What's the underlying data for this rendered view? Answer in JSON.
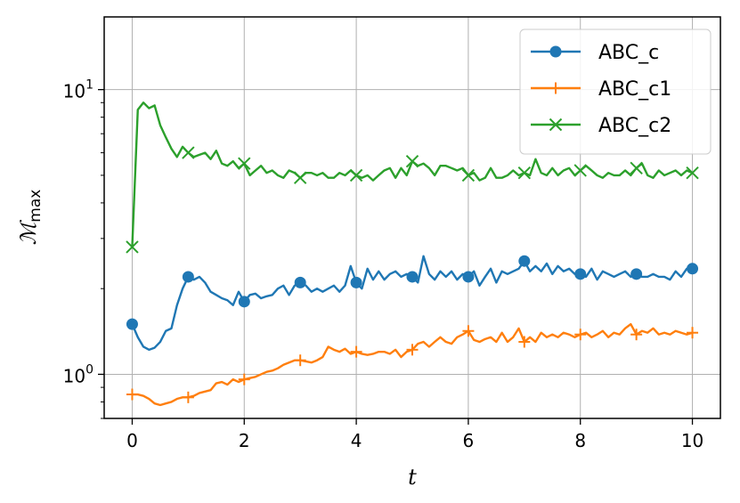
{
  "chart_data": {
    "type": "line",
    "xlabel": "t",
    "ylabel": "ℳ",
    "ylabel_sub": "max",
    "y_scale": "log",
    "xlim": [
      -0.5,
      10.5
    ],
    "ylim": [
      0.7,
      18
    ],
    "x_ticks": [
      0,
      2,
      4,
      6,
      8,
      10
    ],
    "x_tick_labels": [
      "0",
      "2",
      "4",
      "6",
      "8",
      "10"
    ],
    "y_ticks": [
      1,
      10
    ],
    "y_tick_labels": [
      {
        "base": "10",
        "exp": "0"
      },
      {
        "base": "10",
        "exp": "1"
      }
    ],
    "grid": true,
    "legend_position": "top-right",
    "series": [
      {
        "name": "ABC_c",
        "color": "#1f77b4",
        "marker": "circle",
        "x": [
          0,
          0.1,
          0.2,
          0.3,
          0.4,
          0.5,
          0.6,
          0.7,
          0.8,
          0.9,
          1.0,
          1.1,
          1.2,
          1.3,
          1.4,
          1.5,
          1.6,
          1.7,
          1.8,
          1.9,
          2.0,
          2.1,
          2.2,
          2.3,
          2.4,
          2.5,
          2.6,
          2.7,
          2.8,
          2.9,
          3.0,
          3.1,
          3.2,
          3.3,
          3.4,
          3.5,
          3.6,
          3.7,
          3.8,
          3.9,
          4.0,
          4.1,
          4.2,
          4.3,
          4.4,
          4.5,
          4.6,
          4.7,
          4.8,
          4.9,
          5.0,
          5.1,
          5.2,
          5.3,
          5.4,
          5.5,
          5.6,
          5.7,
          5.8,
          5.9,
          6.0,
          6.1,
          6.2,
          6.3,
          6.4,
          6.5,
          6.6,
          6.7,
          6.8,
          6.9,
          7.0,
          7.1,
          7.2,
          7.3,
          7.4,
          7.5,
          7.6,
          7.7,
          7.8,
          7.9,
          8.0,
          8.1,
          8.2,
          8.3,
          8.4,
          8.5,
          8.6,
          8.7,
          8.8,
          8.9,
          9.0,
          9.1,
          9.2,
          9.3,
          9.4,
          9.5,
          9.6,
          9.7,
          9.8,
          9.9,
          10.0
        ],
        "values": [
          1.5,
          1.35,
          1.25,
          1.22,
          1.24,
          1.3,
          1.42,
          1.45,
          1.75,
          2.0,
          2.2,
          2.15,
          2.2,
          2.1,
          1.95,
          1.9,
          1.85,
          1.82,
          1.75,
          1.95,
          1.8,
          1.9,
          1.92,
          1.85,
          1.88,
          1.9,
          2.0,
          2.05,
          1.9,
          2.05,
          2.1,
          2.05,
          1.95,
          2.0,
          1.95,
          2.0,
          2.05,
          1.95,
          2.05,
          2.4,
          2.1,
          2.0,
          2.35,
          2.15,
          2.3,
          2.15,
          2.25,
          2.3,
          2.2,
          2.25,
          2.2,
          2.1,
          2.6,
          2.25,
          2.15,
          2.3,
          2.2,
          2.3,
          2.15,
          2.25,
          2.2,
          2.3,
          2.05,
          2.2,
          2.35,
          2.1,
          2.3,
          2.25,
          2.3,
          2.35,
          2.5,
          2.3,
          2.4,
          2.3,
          2.45,
          2.25,
          2.4,
          2.3,
          2.35,
          2.25,
          2.25,
          2.2,
          2.35,
          2.15,
          2.3,
          2.25,
          2.2,
          2.25,
          2.3,
          2.2,
          2.25,
          2.2,
          2.2,
          2.25,
          2.2,
          2.2,
          2.15,
          2.3,
          2.2,
          2.35,
          2.35
        ],
        "marker_x": [
          0,
          1,
          2,
          3,
          4,
          5,
          6,
          7,
          8,
          9,
          10
        ]
      },
      {
        "name": "ABC_c1",
        "color": "#ff7f0e",
        "marker": "plus",
        "x": [
          0,
          0.1,
          0.2,
          0.3,
          0.4,
          0.5,
          0.6,
          0.7,
          0.8,
          0.9,
          1.0,
          1.1,
          1.2,
          1.3,
          1.4,
          1.5,
          1.6,
          1.7,
          1.8,
          1.9,
          2.0,
          2.1,
          2.2,
          2.3,
          2.4,
          2.5,
          2.6,
          2.7,
          2.8,
          2.9,
          3.0,
          3.1,
          3.2,
          3.3,
          3.4,
          3.5,
          3.6,
          3.7,
          3.8,
          3.9,
          4.0,
          4.1,
          4.2,
          4.3,
          4.4,
          4.5,
          4.6,
          4.7,
          4.8,
          4.9,
          5.0,
          5.1,
          5.2,
          5.3,
          5.4,
          5.5,
          5.6,
          5.7,
          5.8,
          5.9,
          6.0,
          6.1,
          6.2,
          6.3,
          6.4,
          6.5,
          6.6,
          6.7,
          6.8,
          6.9,
          7.0,
          7.1,
          7.2,
          7.3,
          7.4,
          7.5,
          7.6,
          7.7,
          7.8,
          7.9,
          8.0,
          8.1,
          8.2,
          8.3,
          8.4,
          8.5,
          8.6,
          8.7,
          8.8,
          8.9,
          9.0,
          9.1,
          9.2,
          9.3,
          9.4,
          9.5,
          9.6,
          9.7,
          9.8,
          9.9,
          10.0
        ],
        "values": [
          0.85,
          0.85,
          0.84,
          0.82,
          0.79,
          0.78,
          0.79,
          0.8,
          0.82,
          0.83,
          0.83,
          0.84,
          0.86,
          0.87,
          0.88,
          0.93,
          0.94,
          0.92,
          0.96,
          0.94,
          0.96,
          0.97,
          0.98,
          1.0,
          1.02,
          1.03,
          1.05,
          1.08,
          1.1,
          1.12,
          1.12,
          1.11,
          1.1,
          1.12,
          1.15,
          1.25,
          1.22,
          1.2,
          1.23,
          1.18,
          1.2,
          1.18,
          1.17,
          1.18,
          1.2,
          1.2,
          1.18,
          1.22,
          1.15,
          1.2,
          1.22,
          1.28,
          1.3,
          1.25,
          1.3,
          1.35,
          1.3,
          1.28,
          1.35,
          1.38,
          1.42,
          1.32,
          1.3,
          1.33,
          1.35,
          1.3,
          1.4,
          1.3,
          1.35,
          1.45,
          1.3,
          1.35,
          1.3,
          1.4,
          1.35,
          1.38,
          1.35,
          1.4,
          1.38,
          1.35,
          1.38,
          1.4,
          1.35,
          1.38,
          1.42,
          1.35,
          1.4,
          1.38,
          1.45,
          1.5,
          1.38,
          1.42,
          1.4,
          1.45,
          1.38,
          1.4,
          1.38,
          1.42,
          1.4,
          1.38,
          1.4
        ],
        "marker_x": [
          0,
          1,
          2,
          3,
          4,
          5,
          6,
          7,
          8,
          9,
          10
        ]
      },
      {
        "name": "ABC_c2",
        "color": "#2ca02c",
        "marker": "x",
        "x": [
          0,
          0.1,
          0.2,
          0.3,
          0.4,
          0.5,
          0.6,
          0.7,
          0.8,
          0.9,
          1.0,
          1.1,
          1.2,
          1.3,
          1.4,
          1.5,
          1.6,
          1.7,
          1.8,
          1.9,
          2.0,
          2.1,
          2.2,
          2.3,
          2.4,
          2.5,
          2.6,
          2.7,
          2.8,
          2.9,
          3.0,
          3.1,
          3.2,
          3.3,
          3.4,
          3.5,
          3.6,
          3.7,
          3.8,
          3.9,
          4.0,
          4.1,
          4.2,
          4.3,
          4.4,
          4.5,
          4.6,
          4.7,
          4.8,
          4.9,
          5.0,
          5.1,
          5.2,
          5.3,
          5.4,
          5.5,
          5.6,
          5.7,
          5.8,
          5.9,
          6.0,
          6.1,
          6.2,
          6.3,
          6.4,
          6.5,
          6.6,
          6.7,
          6.8,
          6.9,
          7.0,
          7.1,
          7.2,
          7.3,
          7.4,
          7.5,
          7.6,
          7.7,
          7.8,
          7.9,
          8.0,
          8.1,
          8.2,
          8.3,
          8.4,
          8.5,
          8.6,
          8.7,
          8.8,
          8.9,
          9.0,
          9.1,
          9.2,
          9.3,
          9.4,
          9.5,
          9.6,
          9.7,
          9.8,
          9.9,
          10.0
        ],
        "values": [
          2.8,
          8.5,
          9.0,
          8.6,
          8.8,
          7.5,
          6.8,
          6.2,
          5.8,
          6.3,
          6.0,
          5.8,
          5.9,
          6.0,
          5.7,
          6.1,
          5.5,
          5.4,
          5.6,
          5.3,
          5.5,
          5.0,
          5.2,
          5.4,
          5.1,
          5.2,
          5.0,
          4.9,
          5.2,
          5.1,
          4.9,
          5.1,
          5.1,
          5.0,
          5.1,
          4.9,
          4.9,
          5.1,
          5.0,
          5.2,
          5.0,
          4.9,
          5.0,
          4.8,
          5.0,
          5.2,
          5.3,
          4.9,
          5.3,
          5.0,
          5.6,
          5.4,
          5.5,
          5.3,
          5.0,
          5.4,
          5.4,
          5.3,
          5.2,
          5.3,
          5.0,
          5.1,
          4.8,
          4.9,
          5.3,
          4.9,
          4.9,
          5.0,
          5.2,
          5.0,
          5.1,
          5.0,
          5.7,
          5.1,
          5.0,
          5.3,
          5.0,
          5.2,
          5.3,
          5.0,
          5.2,
          5.4,
          5.2,
          5.0,
          4.9,
          5.1,
          5.0,
          5.0,
          5.2,
          5.0,
          5.3,
          5.5,
          5.0,
          4.9,
          5.2,
          5.0,
          5.1,
          5.2,
          5.0,
          5.2,
          5.1
        ],
        "marker_x": [
          0,
          1,
          2,
          3,
          4,
          5,
          6,
          7,
          8,
          9,
          10
        ]
      }
    ]
  }
}
